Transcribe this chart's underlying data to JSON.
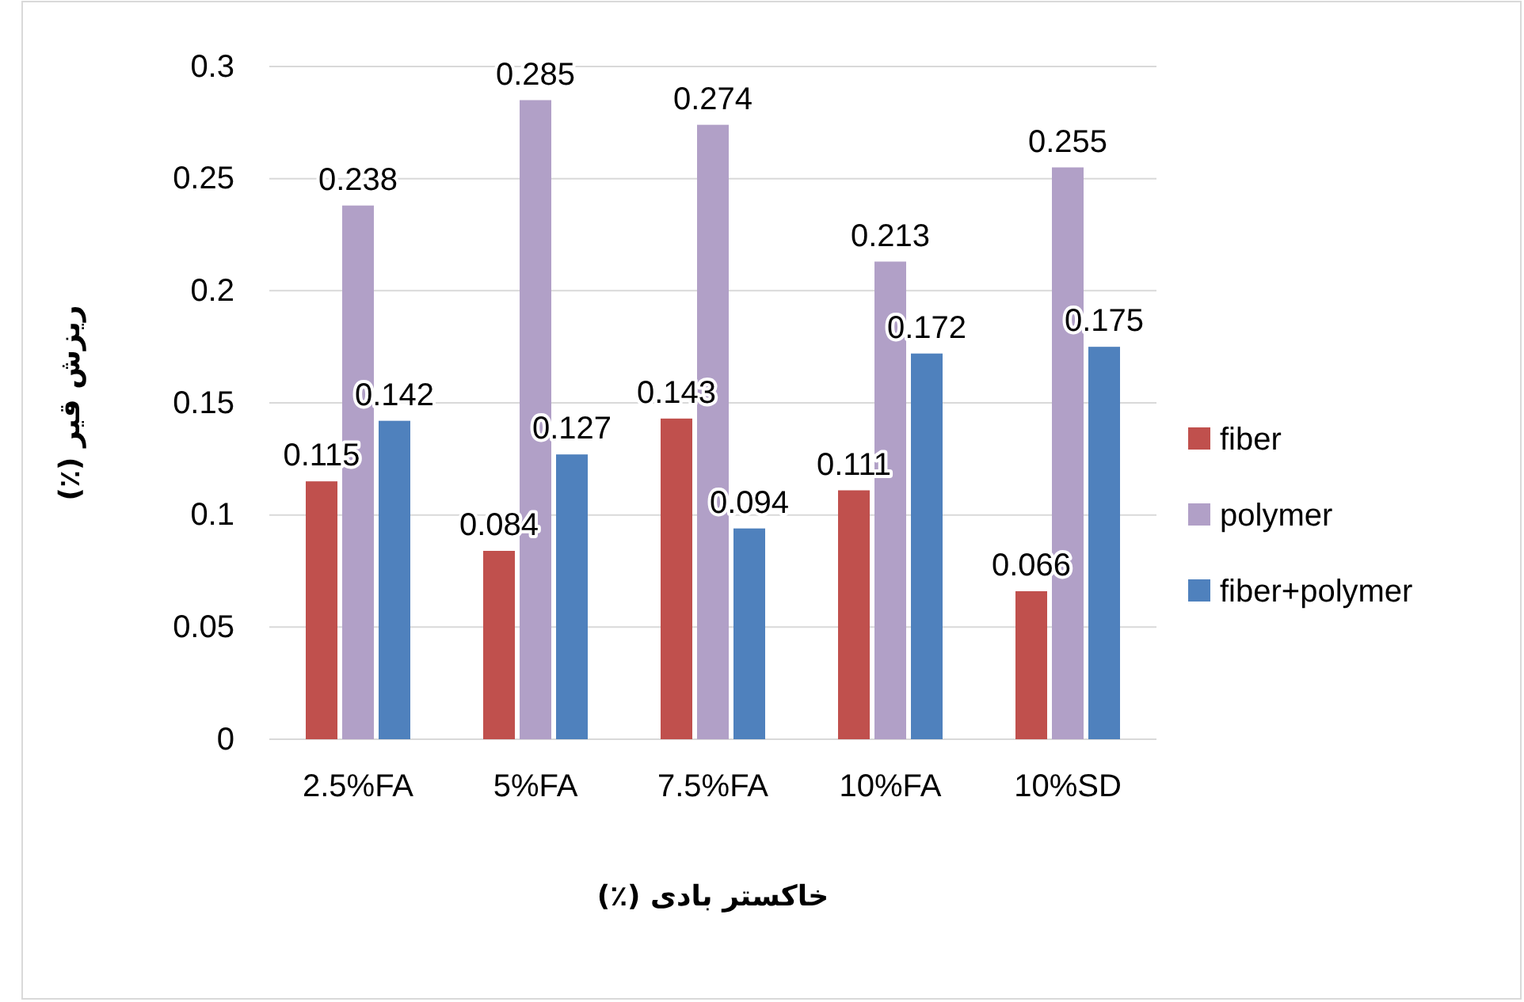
{
  "chart_data": {
    "type": "bar",
    "xlabel": "خاکستر بادی (٪)",
    "ylabel": "ریزش قیر (٪)",
    "categories": [
      "2.5%FA",
      "5%FA",
      "7.5%FA",
      "10%FA",
      "10%SD"
    ],
    "series": [
      {
        "name": "fiber",
        "color": "#c0504d",
        "values": [
          0.115,
          0.084,
          0.143,
          0.111,
          0.066
        ]
      },
      {
        "name": "polymer",
        "color": "#b1a0c7",
        "values": [
          0.238,
          0.285,
          0.274,
          0.213,
          0.255
        ]
      },
      {
        "name": "fiber+polymer",
        "color": "#4f81bd",
        "values": [
          0.142,
          0.127,
          0.094,
          0.172,
          0.175
        ]
      }
    ],
    "ylim": [
      0,
      0.3
    ],
    "yticks": [
      0,
      0.05,
      0.1,
      0.15,
      0.2,
      0.25,
      0.3
    ],
    "grid": "y",
    "legend": "right",
    "data_labels": true
  }
}
